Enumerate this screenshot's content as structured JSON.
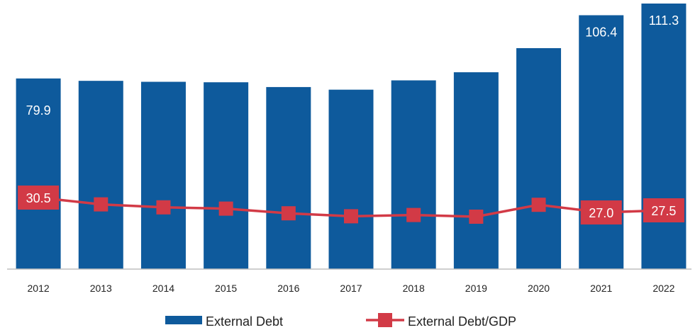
{
  "chart_data": {
    "type": "bar",
    "title": "",
    "xlabel": "",
    "ylabel": "",
    "categories": [
      "2012",
      "2013",
      "2014",
      "2015",
      "2016",
      "2017",
      "2018",
      "2019",
      "2020",
      "2021",
      "2022"
    ],
    "series": [
      {
        "name": "External Debt",
        "type": "bar",
        "color": "#0e5a9c",
        "values": [
          79.9,
          78.9,
          78.5,
          78.3,
          76.3,
          75.2,
          79.1,
          82.5,
          92.6,
          106.4,
          111.3
        ],
        "labeled_indices": [
          0,
          9,
          10
        ]
      },
      {
        "name": "External Debt/GDP",
        "type": "line",
        "color": "#d23a46",
        "values": [
          30.5,
          28.9,
          28.2,
          27.9,
          26.8,
          26.1,
          26.4,
          26.0,
          28.8,
          27.0,
          27.5
        ],
        "labeled_indices": [
          0,
          9,
          10
        ]
      }
    ],
    "grid": false,
    "legend": "bottom"
  }
}
